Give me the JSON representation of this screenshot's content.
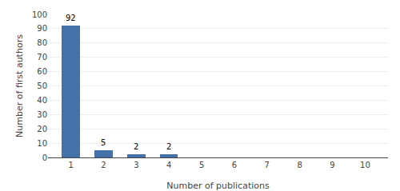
{
  "chart_data": {
    "type": "bar",
    "x": [
      1,
      2,
      3,
      4,
      5,
      6,
      7,
      8,
      9,
      10
    ],
    "values": [
      92,
      5,
      2,
      2,
      0,
      0,
      0,
      0,
      0,
      0
    ],
    "color": "#4472a8",
    "xlabel": "Number of publications",
    "ylabel": "Number of first authors",
    "xlim": [
      0.3,
      10.7
    ],
    "xticks": [
      1,
      2,
      3,
      4,
      5,
      6,
      7,
      8,
      9,
      10
    ],
    "ylim": [
      0,
      100
    ],
    "yticks": [
      0,
      10,
      20,
      30,
      40,
      50,
      60,
      70,
      80,
      90,
      100
    ],
    "grid": true,
    "annotations": [
      {
        "x": 1,
        "y": 92,
        "label": "92"
      },
      {
        "x": 2,
        "y": 5,
        "label": "5"
      },
      {
        "x": 3,
        "y": 2,
        "label": "2"
      },
      {
        "x": 4,
        "y": 2,
        "label": "2"
      }
    ]
  }
}
